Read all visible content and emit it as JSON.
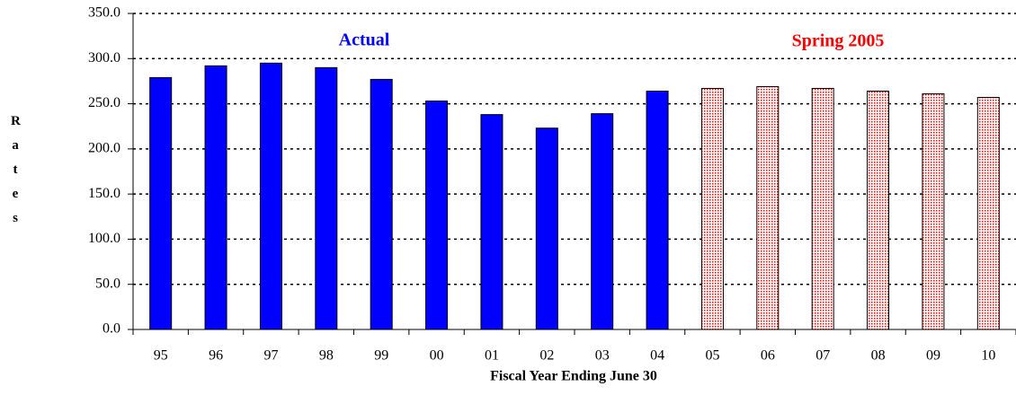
{
  "chart_data": {
    "type": "bar",
    "x_label": "Fiscal Year Ending June 30",
    "y_label": "Rates",
    "categories": [
      "95",
      "96",
      "97",
      "98",
      "99",
      "00",
      "01",
      "02",
      "03",
      "04",
      "05",
      "06",
      "07",
      "08",
      "09",
      "10"
    ],
    "series": [
      {
        "name": "Actual",
        "color": "#0000ff",
        "pattern": false,
        "values": [
          279,
          292,
          295,
          290,
          277,
          253,
          238,
          223,
          239,
          264,
          null,
          null,
          null,
          null,
          null,
          null
        ]
      },
      {
        "name": "Spring 2005",
        "color": "#ff0000",
        "pattern": true,
        "values": [
          null,
          null,
          null,
          null,
          null,
          null,
          null,
          null,
          null,
          null,
          267,
          269,
          267,
          264,
          261,
          257
        ]
      }
    ],
    "ylim": [
      0,
      350
    ],
    "yticks": [
      {
        "value": 0,
        "label": "0.0"
      },
      {
        "value": 50,
        "label": "50.0"
      },
      {
        "value": 100,
        "label": "100.0"
      },
      {
        "value": 150,
        "label": "150.0"
      },
      {
        "value": 200,
        "label": "200.0"
      },
      {
        "value": 250,
        "label": "250.0"
      },
      {
        "value": 300,
        "label": "300.0"
      },
      {
        "value": 350,
        "label": "350.0"
      }
    ],
    "grid": true
  }
}
